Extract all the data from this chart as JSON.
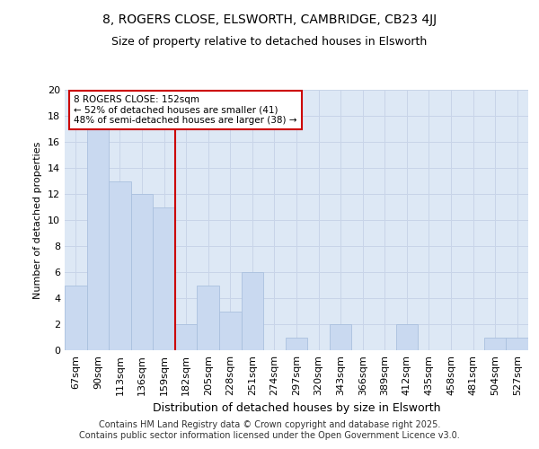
{
  "title": "8, ROGERS CLOSE, ELSWORTH, CAMBRIDGE, CB23 4JJ",
  "subtitle": "Size of property relative to detached houses in Elsworth",
  "xlabel": "Distribution of detached houses by size in Elsworth",
  "ylabel": "Number of detached properties",
  "categories": [
    "67sqm",
    "90sqm",
    "113sqm",
    "136sqm",
    "159sqm",
    "182sqm",
    "205sqm",
    "228sqm",
    "251sqm",
    "274sqm",
    "297sqm",
    "320sqm",
    "343sqm",
    "366sqm",
    "389sqm",
    "412sqm",
    "435sqm",
    "458sqm",
    "481sqm",
    "504sqm",
    "527sqm"
  ],
  "values": [
    5,
    17,
    13,
    12,
    11,
    2,
    5,
    3,
    6,
    0,
    1,
    0,
    2,
    0,
    0,
    2,
    0,
    0,
    0,
    1,
    1
  ],
  "bar_color": "#c9d9f0",
  "bar_edge_color": "#aac0de",
  "vline_color": "#cc0000",
  "annotation_text": "8 ROGERS CLOSE: 152sqm\n← 52% of detached houses are smaller (41)\n48% of semi-detached houses are larger (38) →",
  "annotation_box_color": "#ffffff",
  "annotation_box_edge_color": "#cc0000",
  "ylim": [
    0,
    20
  ],
  "yticks": [
    0,
    2,
    4,
    6,
    8,
    10,
    12,
    14,
    16,
    18,
    20
  ],
  "grid_color": "#c8d4e8",
  "bg_color": "#dde8f5",
  "footer": "Contains HM Land Registry data © Crown copyright and database right 2025.\nContains public sector information licensed under the Open Government Licence v3.0.",
  "title_fontsize": 10,
  "subtitle_fontsize": 9,
  "xlabel_fontsize": 9,
  "ylabel_fontsize": 8,
  "tick_fontsize": 8,
  "annotation_fontsize": 7.5,
  "footer_fontsize": 7
}
